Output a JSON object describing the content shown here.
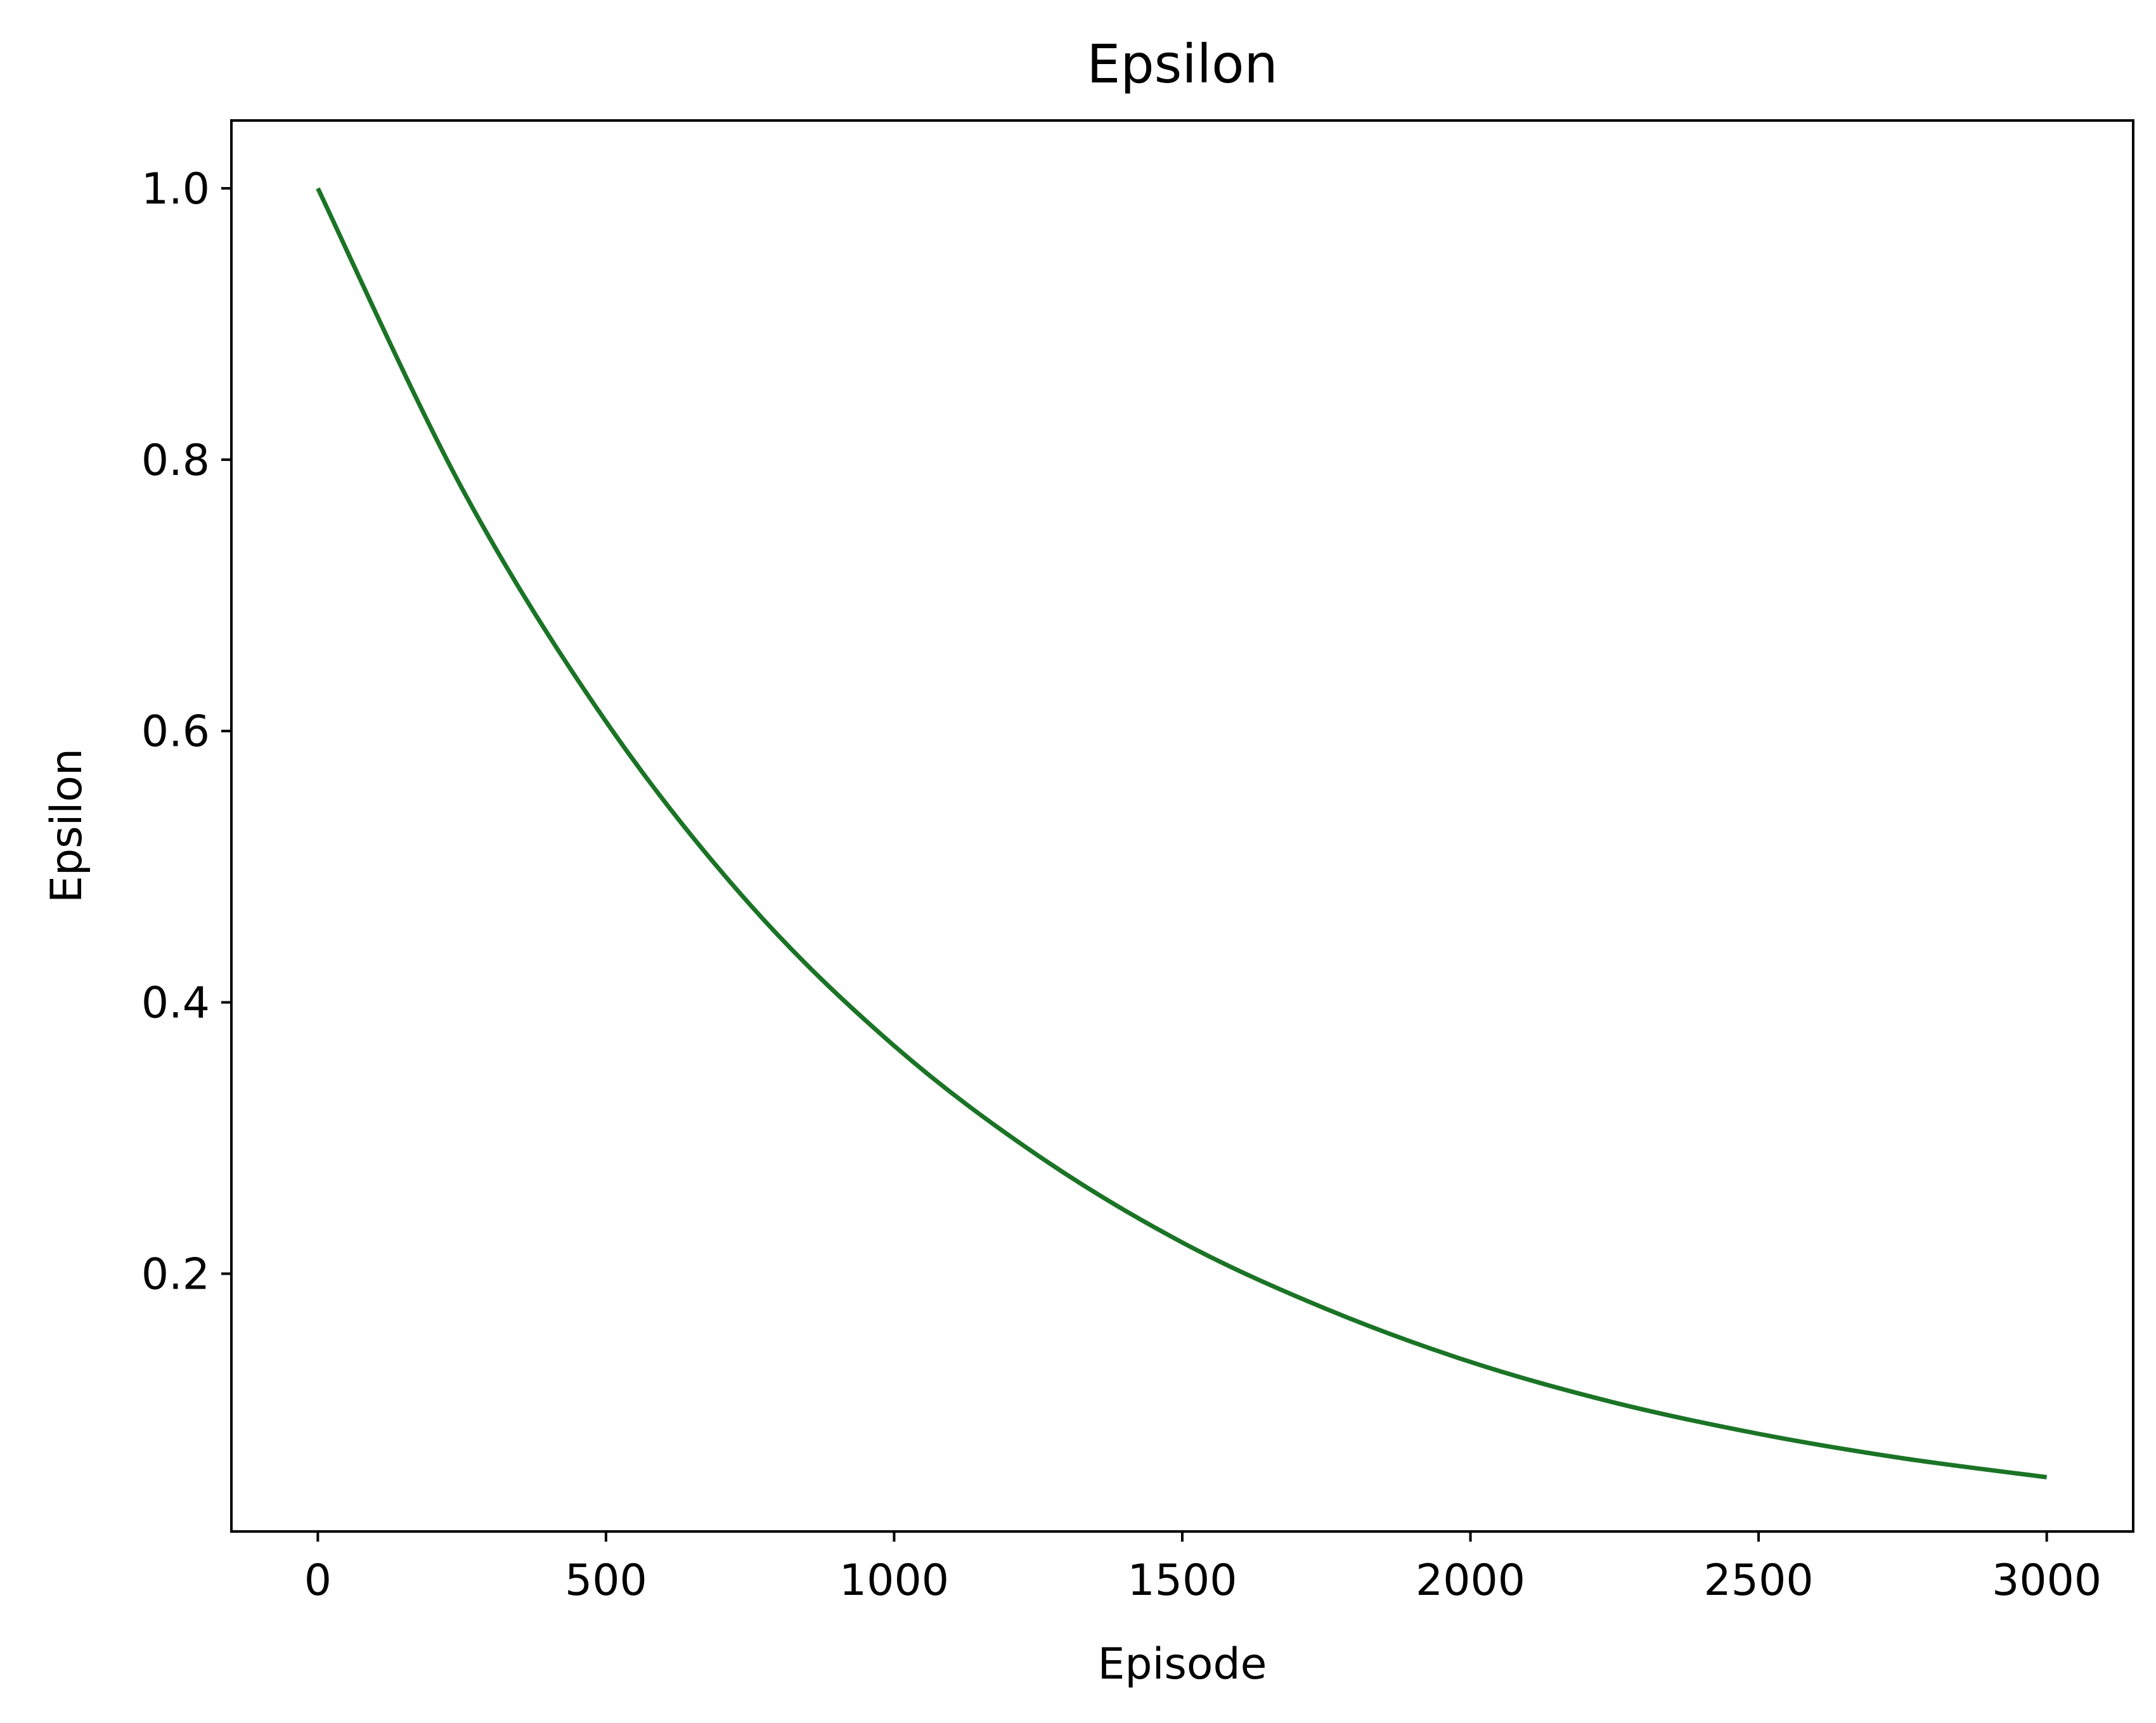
{
  "chart_data": {
    "type": "line",
    "title": "Epsilon",
    "xlabel": "Episode",
    "ylabel": "Epsilon",
    "xlim": [
      -150,
      3150
    ],
    "ylim": [
      0.01,
      1.05
    ],
    "grid": false,
    "x_ticks": [
      0,
      500,
      1000,
      1500,
      2000,
      2500,
      3000
    ],
    "x_tick_labels": [
      "0",
      "500",
      "1000",
      "1500",
      "2000",
      "2500",
      "3000"
    ],
    "y_ticks": [
      0.2,
      0.4,
      0.6,
      0.8,
      1.0
    ],
    "y_tick_labels": [
      "0.2",
      "0.4",
      "0.6",
      "0.8",
      "1.0"
    ],
    "series": [
      {
        "color": "#1b7426",
        "x": [
          0,
          250,
          500,
          750,
          1000,
          1250,
          1500,
          1750,
          2000,
          2250,
          2500,
          2750,
          3000
        ],
        "y": [
          1.0,
          0.779,
          0.607,
          0.472,
          0.368,
          0.287,
          0.223,
          0.174,
          0.135,
          0.105,
          0.082,
          0.064,
          0.05
        ]
      }
    ]
  }
}
